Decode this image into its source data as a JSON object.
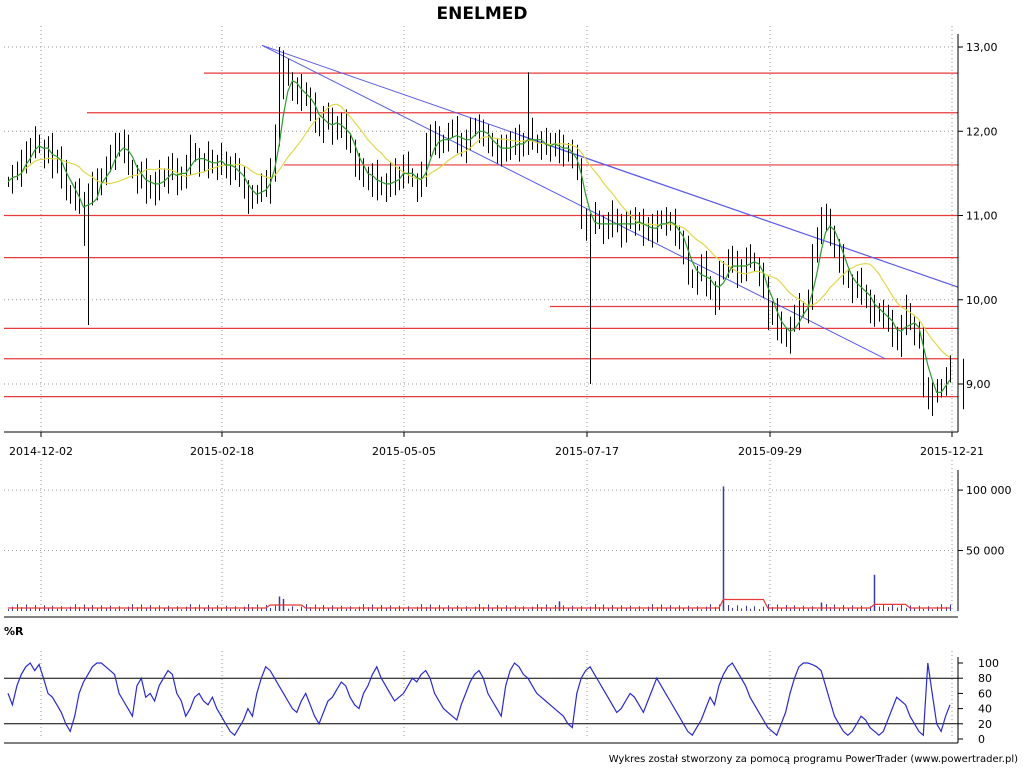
{
  "chart_data": [
    {
      "type": "ohlc",
      "title": "ENELMED",
      "x_ticks": [
        "2014-12-02",
        "2015-02-18",
        "2015-05-05",
        "2015-07-17",
        "2015-09-29",
        "2015-12-21"
      ],
      "y_ticks": [
        "13,00",
        "12,00",
        "11,00",
        "10,00",
        "9,00"
      ],
      "ylim": [
        8.5,
        13.0
      ],
      "grid": true,
      "series": [
        {
          "values": [
            11.4,
            11.5,
            11.5,
            11.6,
            11.8,
            11.8,
            11.9,
            11.8,
            11.7,
            11.8,
            11.6,
            11.7,
            11.5,
            11.3,
            11.2,
            11.3,
            11.1,
            10.8,
            11.3,
            11.4,
            11.3,
            11.5,
            11.6,
            11.7,
            11.8,
            11.9,
            11.8,
            11.6,
            11.5,
            11.4,
            11.5,
            11.3,
            11.4,
            11.3,
            11.5,
            11.4,
            11.6,
            11.5,
            11.4,
            11.5,
            11.6,
            11.8,
            11.7,
            11.6,
            11.6,
            11.7,
            11.6,
            11.6,
            11.7,
            11.5,
            11.6,
            11.5,
            11.5,
            11.3,
            11.2,
            11.2,
            11.3,
            11.4,
            11.3,
            11.5,
            12.0,
            12.5,
            12.8,
            12.6,
            12.5,
            12.4,
            12.5,
            12.4,
            12.3,
            12.1,
            12.0,
            12.2,
            12.1,
            12.0,
            12.1,
            12.1,
            11.9,
            11.8,
            11.6,
            11.5,
            11.5,
            11.4,
            11.5,
            11.3,
            11.4,
            11.3,
            11.5,
            11.4,
            11.5,
            11.6,
            11.5,
            11.4,
            11.3,
            11.5,
            11.8,
            12.0,
            11.9,
            11.8,
            11.9,
            12.0,
            12.0,
            11.9,
            11.8,
            11.9,
            12.0,
            12.1,
            12.0,
            11.9,
            11.9,
            11.8,
            11.8,
            11.7,
            11.9,
            11.8,
            11.9,
            11.8,
            11.9,
            12.0,
            11.9,
            11.8,
            11.9,
            11.8,
            11.8,
            11.9,
            11.8,
            11.7,
            11.8,
            11.7,
            11.5,
            11.0,
            10.8,
            10.9,
            11.0,
            10.9,
            10.8,
            10.9,
            11.0,
            10.9,
            10.8,
            10.9,
            11.0,
            10.9,
            10.9,
            10.8,
            10.9,
            10.8,
            10.9,
            11.0,
            10.9,
            10.9,
            10.8,
            10.7,
            10.6,
            10.3,
            10.2,
            10.3,
            10.4,
            10.2,
            10.1,
            10.0,
            10.3,
            10.4,
            10.5,
            10.4,
            10.3,
            10.4,
            10.5,
            10.5,
            10.4,
            10.3,
            10.1,
            9.8,
            9.9,
            9.7,
            9.6,
            9.5,
            9.7,
            9.8,
            9.9,
            9.9,
            10.0,
            10.5,
            10.8,
            11.0,
            10.9,
            10.8,
            10.6,
            10.5,
            10.3,
            10.2,
            10.1,
            10.2,
            10.1,
            10.0,
            9.9,
            9.8,
            9.9,
            9.8,
            9.7,
            9.6,
            9.5,
            9.7,
            9.9,
            9.7,
            9.6,
            9.5,
            9.0,
            8.8,
            8.9,
            8.9,
            9.0,
            9.1,
            9.2
          ]
        },
        {
          "name": "",
          "values": []
        }
      ]
    },
    {
      "type": "bar",
      "y_ticks": [
        "100 000",
        "50 000"
      ],
      "ylim": [
        0,
        110000
      ],
      "spikes": [
        {
          "x": 161,
          "value": 103000
        },
        {
          "x": 195,
          "value": 30000
        },
        {
          "x": 124,
          "value": 8000
        },
        {
          "x": 183,
          "value": 7000
        },
        {
          "x": 61,
          "value": 12000
        },
        {
          "x": 62,
          "value": 10000
        }
      ]
    },
    {
      "type": "line",
      "title": "%R",
      "y_ticks": [
        "100",
        "80",
        "60",
        "40",
        "20",
        "0"
      ],
      "ylim": [
        0,
        100
      ],
      "series": [
        {
          "values": [
            60,
            45,
            70,
            85,
            95,
            100,
            90,
            98,
            80,
            60,
            55,
            45,
            35,
            20,
            10,
            30,
            60,
            75,
            85,
            95,
            100,
            100,
            95,
            90,
            85,
            60,
            50,
            40,
            30,
            70,
            80,
            55,
            60,
            50,
            70,
            80,
            90,
            85,
            60,
            50,
            30,
            40,
            55,
            60,
            50,
            45,
            55,
            40,
            30,
            20,
            10,
            5,
            15,
            25,
            40,
            30,
            60,
            80,
            95,
            90,
            80,
            70,
            60,
            50,
            40,
            35,
            50,
            60,
            45,
            30,
            20,
            35,
            50,
            55,
            65,
            75,
            70,
            55,
            45,
            40,
            60,
            70,
            85,
            95,
            80,
            70,
            60,
            50,
            55,
            60,
            70,
            80,
            75,
            85,
            90,
            80,
            60,
            50,
            40,
            35,
            30,
            25,
            45,
            60,
            75,
            85,
            90,
            80,
            60,
            50,
            40,
            30,
            70,
            90,
            100,
            95,
            85,
            80,
            70,
            60,
            55,
            50,
            45,
            40,
            35,
            30,
            20,
            15,
            60,
            80,
            90,
            95,
            85,
            75,
            65,
            55,
            45,
            35,
            40,
            50,
            60,
            55,
            45,
            35,
            50,
            65,
            80,
            70,
            60,
            50,
            40,
            30,
            20,
            10,
            5,
            15,
            25,
            40,
            55,
            45,
            70,
            85,
            95,
            100,
            90,
            80,
            70,
            55,
            45,
            35,
            25,
            15,
            10,
            5,
            20,
            35,
            60,
            80,
            95,
            100,
            100,
            98,
            95,
            90,
            70,
            50,
            30,
            20,
            10,
            5,
            10,
            20,
            30,
            25,
            15,
            10,
            5,
            10,
            25,
            40,
            55,
            50,
            45,
            30,
            20,
            10,
            5,
            100,
            60,
            20,
            10,
            30,
            45
          ]
        }
      ]
    }
  ],
  "footer": "Wykres został stworzony za pomocą programu PowerTrader (www.powertrader.pl)"
}
